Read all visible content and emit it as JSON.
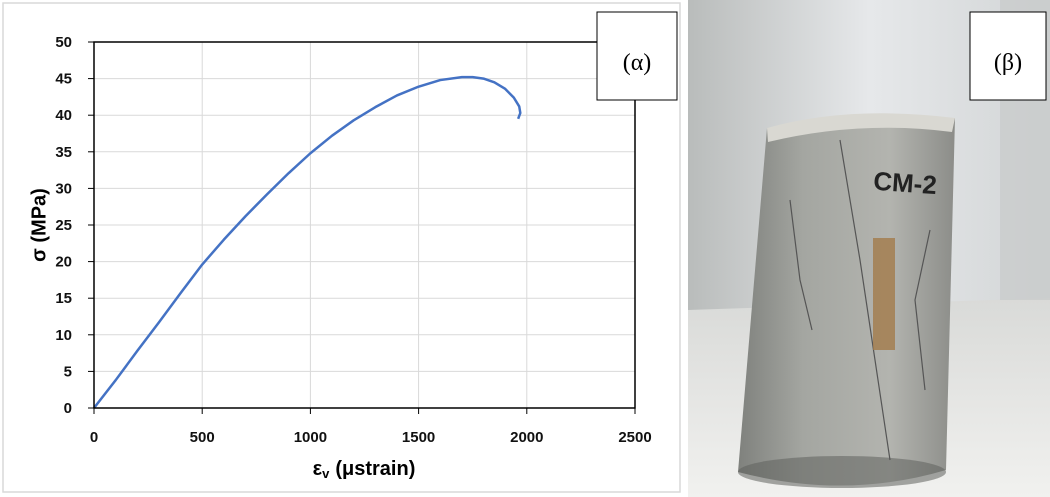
{
  "chart_data": {
    "type": "line",
    "y_label": "σ (MPa)",
    "x_label": {
      "symbol": "ε",
      "subscript": "v",
      "unit": "(μstrain)"
    },
    "annotation": "(α)",
    "x": [
      0,
      100,
      200,
      300,
      400,
      500,
      600,
      700,
      800,
      900,
      1000,
      1100,
      1200,
      1300,
      1400,
      1500,
      1600,
      1700,
      1750,
      1800,
      1850,
      1900,
      1940,
      1965,
      1970,
      1960
    ],
    "series": [
      {
        "color": "#4472c4",
        "values": [
          0,
          3.8,
          7.8,
          11.7,
          15.7,
          19.6,
          23,
          26.2,
          29.2,
          32.1,
          34.8,
          37.2,
          39.3,
          41.1,
          42.7,
          43.9,
          44.8,
          45.2,
          45.2,
          45,
          44.5,
          43.6,
          42.4,
          41.2,
          40.3,
          39.5
        ]
      }
    ],
    "xlim": [
      0,
      2500
    ],
    "ylim": [
      0,
      50
    ],
    "xticks": [
      0,
      500,
      1000,
      1500,
      2000,
      2500
    ],
    "yticks": [
      0,
      5,
      10,
      15,
      20,
      25,
      30,
      35,
      40,
      45,
      50
    ],
    "grid": true
  },
  "photo": {
    "label": "(β)",
    "marking": "CM-2"
  }
}
